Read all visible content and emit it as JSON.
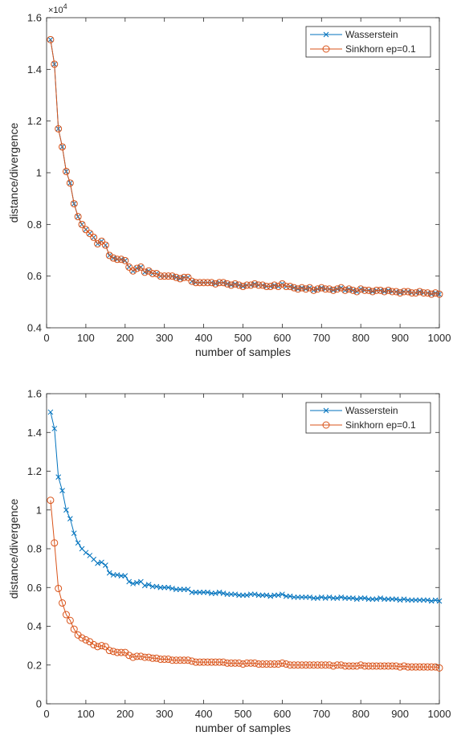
{
  "colors": {
    "wasserstein": "#0072BD",
    "sinkhorn": "#D95319",
    "axis": "#262626",
    "text": "#262626",
    "background": "#ffffff"
  },
  "chart_data": [
    {
      "type": "line",
      "title": "",
      "xlabel": "number of samples",
      "ylabel": "distance/divergence",
      "y_exponent_label": "×10",
      "y_exponent_value": "4",
      "xlim": [
        0,
        1000
      ],
      "ylim": [
        0.4,
        1.6
      ],
      "xticks": [
        0,
        100,
        200,
        300,
        400,
        500,
        600,
        700,
        800,
        900,
        1000
      ],
      "yticks": [
        0.4,
        0.6,
        0.8,
        1,
        1.2,
        1.4,
        1.6
      ],
      "ytick_labels": [
        "0.4",
        "0.6",
        "0.8",
        "1",
        "1.2",
        "1.4",
        "1.6"
      ],
      "legend_position": "top-right",
      "grid": false,
      "x": [
        10,
        20,
        30,
        40,
        50,
        60,
        70,
        80,
        90,
        100,
        110,
        120,
        130,
        140,
        150,
        160,
        170,
        180,
        190,
        200,
        210,
        220,
        230,
        240,
        250,
        260,
        270,
        280,
        290,
        300,
        310,
        320,
        330,
        340,
        350,
        360,
        370,
        380,
        390,
        400,
        410,
        420,
        430,
        440,
        450,
        460,
        470,
        480,
        490,
        500,
        510,
        520,
        530,
        540,
        550,
        560,
        570,
        580,
        590,
        600,
        610,
        620,
        630,
        640,
        650,
        660,
        670,
        680,
        690,
        700,
        710,
        720,
        730,
        740,
        750,
        760,
        770,
        780,
        790,
        800,
        810,
        820,
        830,
        840,
        850,
        860,
        870,
        880,
        890,
        900,
        910,
        920,
        930,
        940,
        950,
        960,
        970,
        980,
        990,
        1000
      ],
      "series": [
        {
          "name": "Wasserstein",
          "marker": "x",
          "values": [
            1.515,
            1.42,
            1.17,
            1.1,
            1.005,
            0.96,
            0.88,
            0.83,
            0.8,
            0.78,
            0.765,
            0.75,
            0.725,
            0.735,
            0.72,
            0.68,
            0.67,
            0.665,
            0.665,
            0.66,
            0.635,
            0.62,
            0.63,
            0.635,
            0.615,
            0.62,
            0.61,
            0.61,
            0.6,
            0.6,
            0.6,
            0.6,
            0.595,
            0.59,
            0.595,
            0.595,
            0.58,
            0.575,
            0.575,
            0.575,
            0.575,
            0.575,
            0.57,
            0.575,
            0.575,
            0.57,
            0.565,
            0.57,
            0.565,
            0.56,
            0.565,
            0.565,
            0.57,
            0.565,
            0.565,
            0.56,
            0.56,
            0.565,
            0.56,
            0.57,
            0.56,
            0.56,
            0.555,
            0.55,
            0.555,
            0.55,
            0.555,
            0.545,
            0.55,
            0.555,
            0.55,
            0.55,
            0.545,
            0.55,
            0.555,
            0.545,
            0.55,
            0.545,
            0.54,
            0.55,
            0.545,
            0.545,
            0.54,
            0.545,
            0.545,
            0.54,
            0.545,
            0.54,
            0.54,
            0.535,
            0.54,
            0.54,
            0.535,
            0.535,
            0.54,
            0.535,
            0.535,
            0.53,
            0.535,
            0.53
          ]
        },
        {
          "name": "Sinkhorn ep=0.1",
          "marker": "o",
          "values": [
            1.515,
            1.42,
            1.17,
            1.1,
            1.005,
            0.96,
            0.88,
            0.83,
            0.8,
            0.78,
            0.765,
            0.75,
            0.725,
            0.735,
            0.72,
            0.68,
            0.67,
            0.665,
            0.665,
            0.66,
            0.635,
            0.62,
            0.63,
            0.635,
            0.615,
            0.62,
            0.61,
            0.61,
            0.6,
            0.6,
            0.6,
            0.6,
            0.595,
            0.59,
            0.595,
            0.595,
            0.58,
            0.575,
            0.575,
            0.575,
            0.575,
            0.575,
            0.57,
            0.575,
            0.575,
            0.57,
            0.565,
            0.57,
            0.565,
            0.56,
            0.565,
            0.565,
            0.57,
            0.565,
            0.565,
            0.56,
            0.56,
            0.565,
            0.56,
            0.57,
            0.56,
            0.56,
            0.555,
            0.55,
            0.555,
            0.55,
            0.555,
            0.545,
            0.55,
            0.555,
            0.55,
            0.55,
            0.545,
            0.55,
            0.555,
            0.545,
            0.55,
            0.545,
            0.54,
            0.55,
            0.545,
            0.545,
            0.54,
            0.545,
            0.545,
            0.54,
            0.545,
            0.54,
            0.54,
            0.535,
            0.54,
            0.54,
            0.535,
            0.535,
            0.54,
            0.535,
            0.535,
            0.53,
            0.535,
            0.53
          ]
        }
      ]
    },
    {
      "type": "line",
      "title": "",
      "xlabel": "number of samples",
      "ylabel": "distance/divergence",
      "xlim": [
        0,
        1000
      ],
      "ylim": [
        0,
        1.6
      ],
      "xticks": [
        0,
        100,
        200,
        300,
        400,
        500,
        600,
        700,
        800,
        900,
        1000
      ],
      "yticks": [
        0,
        0.2,
        0.4,
        0.6,
        0.8,
        1,
        1.2,
        1.4,
        1.6
      ],
      "ytick_labels": [
        "0",
        "0.2",
        "0.4",
        "0.6",
        "0.8",
        "1",
        "1.2",
        "1.4",
        "1.6"
      ],
      "legend_position": "top-right",
      "grid": false,
      "x": [
        10,
        20,
        30,
        40,
        50,
        60,
        70,
        80,
        90,
        100,
        110,
        120,
        130,
        140,
        150,
        160,
        170,
        180,
        190,
        200,
        210,
        220,
        230,
        240,
        250,
        260,
        270,
        280,
        290,
        300,
        310,
        320,
        330,
        340,
        350,
        360,
        370,
        380,
        390,
        400,
        410,
        420,
        430,
        440,
        450,
        460,
        470,
        480,
        490,
        500,
        510,
        520,
        530,
        540,
        550,
        560,
        570,
        580,
        590,
        600,
        610,
        620,
        630,
        640,
        650,
        660,
        670,
        680,
        690,
        700,
        710,
        720,
        730,
        740,
        750,
        760,
        770,
        780,
        790,
        800,
        810,
        820,
        830,
        840,
        850,
        860,
        870,
        880,
        890,
        900,
        910,
        920,
        930,
        940,
        950,
        960,
        970,
        980,
        990,
        1000
      ],
      "series": [
        {
          "name": "Wasserstein",
          "marker": "x",
          "values": [
            1.505,
            1.42,
            1.17,
            1.1,
            1.0,
            0.955,
            0.88,
            0.83,
            0.8,
            0.78,
            0.765,
            0.745,
            0.725,
            0.73,
            0.715,
            0.675,
            0.665,
            0.665,
            0.66,
            0.66,
            0.63,
            0.62,
            0.625,
            0.63,
            0.61,
            0.615,
            0.605,
            0.605,
            0.6,
            0.6,
            0.6,
            0.595,
            0.59,
            0.59,
            0.59,
            0.59,
            0.575,
            0.575,
            0.575,
            0.575,
            0.575,
            0.57,
            0.57,
            0.575,
            0.57,
            0.565,
            0.565,
            0.565,
            0.56,
            0.56,
            0.56,
            0.565,
            0.565,
            0.56,
            0.56,
            0.56,
            0.555,
            0.56,
            0.56,
            0.565,
            0.555,
            0.555,
            0.55,
            0.55,
            0.55,
            0.55,
            0.55,
            0.545,
            0.545,
            0.55,
            0.545,
            0.55,
            0.545,
            0.545,
            0.55,
            0.545,
            0.545,
            0.545,
            0.54,
            0.545,
            0.545,
            0.54,
            0.54,
            0.54,
            0.545,
            0.54,
            0.54,
            0.54,
            0.54,
            0.535,
            0.54,
            0.535,
            0.535,
            0.535,
            0.535,
            0.535,
            0.535,
            0.53,
            0.535,
            0.53
          ]
        },
        {
          "name": "Sinkhorn ep=0.1",
          "marker": "o",
          "values": [
            1.05,
            0.83,
            0.595,
            0.52,
            0.46,
            0.43,
            0.385,
            0.355,
            0.34,
            0.33,
            0.32,
            0.305,
            0.295,
            0.3,
            0.295,
            0.275,
            0.27,
            0.265,
            0.265,
            0.265,
            0.25,
            0.24,
            0.245,
            0.245,
            0.24,
            0.24,
            0.235,
            0.235,
            0.23,
            0.23,
            0.23,
            0.225,
            0.225,
            0.225,
            0.225,
            0.225,
            0.22,
            0.215,
            0.215,
            0.215,
            0.215,
            0.215,
            0.215,
            0.215,
            0.215,
            0.21,
            0.21,
            0.21,
            0.21,
            0.205,
            0.21,
            0.21,
            0.21,
            0.205,
            0.205,
            0.205,
            0.205,
            0.205,
            0.205,
            0.21,
            0.205,
            0.2,
            0.2,
            0.2,
            0.2,
            0.2,
            0.2,
            0.2,
            0.2,
            0.2,
            0.2,
            0.2,
            0.195,
            0.2,
            0.2,
            0.195,
            0.195,
            0.195,
            0.195,
            0.2,
            0.195,
            0.195,
            0.195,
            0.195,
            0.195,
            0.195,
            0.195,
            0.195,
            0.195,
            0.19,
            0.195,
            0.19,
            0.19,
            0.19,
            0.19,
            0.19,
            0.19,
            0.19,
            0.19,
            0.185
          ]
        }
      ]
    }
  ]
}
